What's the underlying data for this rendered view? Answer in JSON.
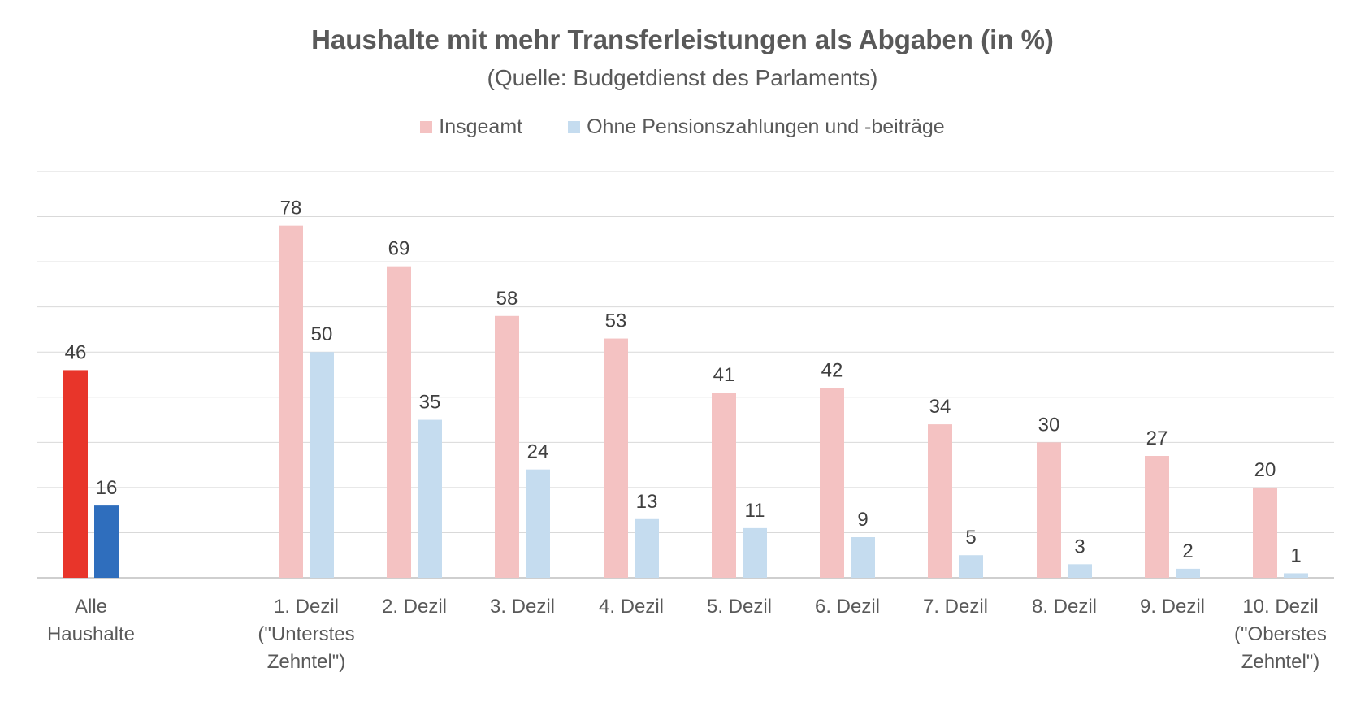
{
  "chart_data": {
    "type": "bar",
    "title": "Haushalte mit mehr Transferleistungen als Abgaben (in %)",
    "subtitle": "(Quelle: Budgetdienst des Parlaments)",
    "xlabel": "",
    "ylabel": "",
    "ylim": [
      0,
      90
    ],
    "grid": true,
    "legend_position": "top",
    "categories": [
      [
        "Alle",
        "Haushalte"
      ],
      [
        "1. Dezil",
        "(\"Unterstes",
        "Zehntel\")"
      ],
      [
        "2. Dezil"
      ],
      [
        "3. Dezil"
      ],
      [
        "4. Dezil"
      ],
      [
        "5. Dezil"
      ],
      [
        "6. Dezil"
      ],
      [
        "7. Dezil"
      ],
      [
        "8. Dezil"
      ],
      [
        "9. Dezil"
      ],
      [
        "10. Dezil",
        "(\"Oberstes",
        "Zehntel\")"
      ]
    ],
    "series": [
      {
        "name": "Insgeamt",
        "color": "#f4c2c2",
        "highlight_color": "#e8352a",
        "values": [
          46,
          78,
          69,
          58,
          53,
          41,
          42,
          34,
          30,
          27,
          20
        ]
      },
      {
        "name": "Ohne Pensionszahlungen und -beiträge",
        "color": "#c5dcef",
        "highlight_color": "#2f6ebd",
        "values": [
          16,
          50,
          35,
          24,
          13,
          11,
          9,
          5,
          3,
          2,
          1
        ]
      }
    ]
  }
}
